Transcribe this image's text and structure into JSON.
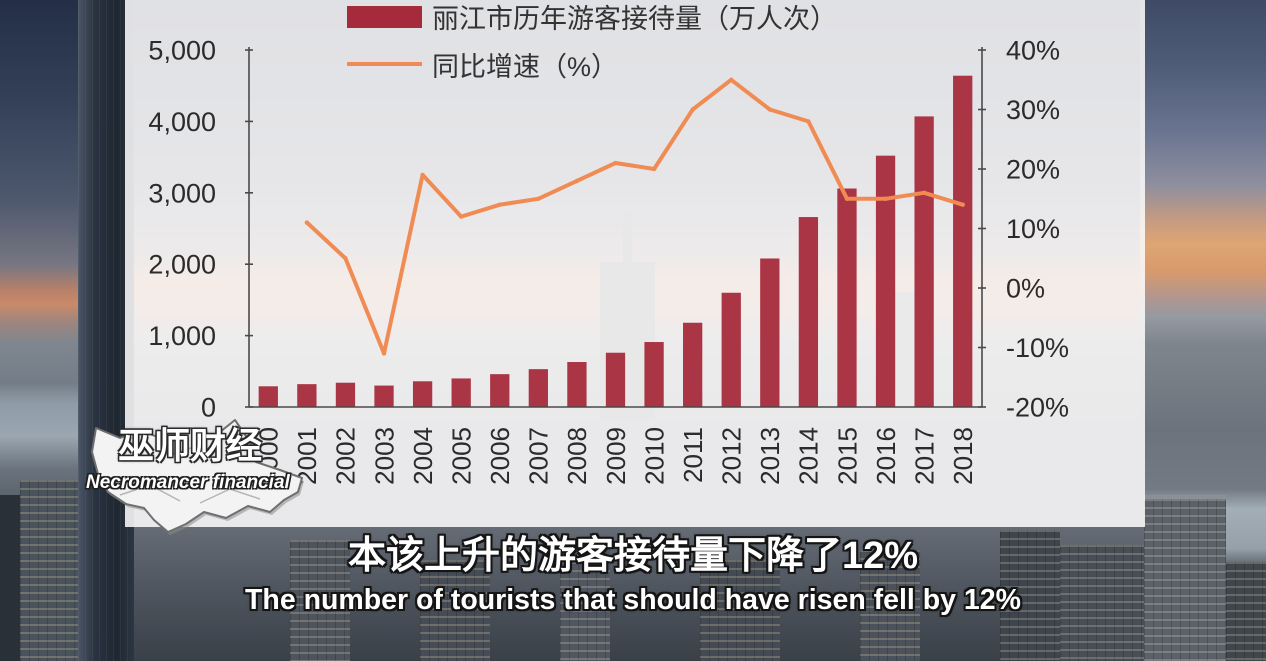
{
  "chart_data": {
    "type": "bar",
    "categories": [
      "2000",
      "2001",
      "2002",
      "2003",
      "2004",
      "2005",
      "2006",
      "2007",
      "2008",
      "2009",
      "2010",
      "2011",
      "2012",
      "2013",
      "2014",
      "2015",
      "2016",
      "2017",
      "2018"
    ],
    "series": [
      {
        "name": "丽江市历年游客接待量（万人次）",
        "type": "bar",
        "axis": "left",
        "color": "#a52b3c",
        "values": [
          290,
          320,
          340,
          300,
          360,
          400,
          460,
          530,
          630,
          760,
          910,
          1180,
          1600,
          2080,
          2660,
          3060,
          3520,
          4070,
          4640
        ]
      },
      {
        "name": "同比增速（%）",
        "type": "line",
        "axis": "right",
        "color": "#f08b53",
        "values": [
          null,
          11,
          5,
          -11,
          19,
          12,
          14,
          15,
          18,
          21,
          20,
          30,
          35,
          30,
          28,
          15,
          15,
          16,
          14
        ]
      }
    ],
    "y_left": {
      "range": [
        0,
        5000
      ],
      "ticks": [
        0,
        1000,
        2000,
        3000,
        4000,
        5000
      ],
      "tick_labels": [
        "0",
        "1,000",
        "2,000",
        "3,000",
        "4,000",
        "5,000"
      ]
    },
    "y_right": {
      "range": [
        -20,
        40
      ],
      "ticks": [
        -20,
        -10,
        0,
        10,
        20,
        30,
        40
      ],
      "tick_labels": [
        "-20%",
        "-10%",
        "0%",
        "10%",
        "20%",
        "30%",
        "40%"
      ]
    },
    "legend": "top",
    "grid": false
  },
  "watermark": {
    "name_cn": "巫师财经",
    "name_en": "Necromancer financial"
  },
  "subtitles": {
    "zh": "本该上升的游客接待量下降了12%",
    "en": "The number of tourists that should have risen fell by 12%"
  }
}
